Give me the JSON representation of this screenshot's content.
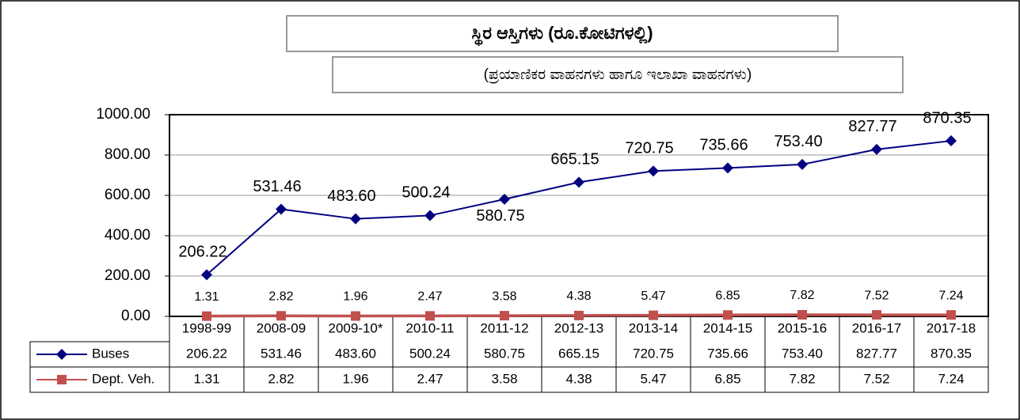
{
  "chart_data": {
    "type": "line",
    "title": "ಸ್ಥಿರ ಆಸ್ತಿಗಳು (ರೂ.ಕೋಟಿಗಳಲ್ಲಿ)",
    "subtitle": "(ಪ್ರಯಾಣಿಕರ ವಾಹನಗಳು  ಹಾಗೂ  ಇಲಾಖಾ ವಾಹನಗಳು)",
    "categories": [
      "1998-99",
      "2008-09",
      "2009-10*",
      "2010-11",
      "2011-12",
      "2012-13",
      "2013-14",
      "2014-15",
      "2015-16",
      "2016-17",
      "2017-18"
    ],
    "series": [
      {
        "name": "Buses",
        "color": "#000080",
        "marker": "diamond",
        "values": [
          206.22,
          531.46,
          483.6,
          500.24,
          580.75,
          665.15,
          720.75,
          735.66,
          753.4,
          827.77,
          870.35
        ],
        "value_labels": [
          "206.22",
          "531.46",
          "483.60",
          "500.24",
          "580.75",
          "665.15",
          "720.75",
          "735.66",
          "753.40",
          "827.77",
          "870.35"
        ]
      },
      {
        "name": "Dept. Veh.",
        "color": "#c0504d",
        "marker": "square",
        "values": [
          1.31,
          2.82,
          1.96,
          2.47,
          3.58,
          4.38,
          5.47,
          6.85,
          7.82,
          7.52,
          7.24
        ],
        "value_labels": [
          "1.31",
          "2.82",
          "1.96",
          "2.47",
          "3.58",
          "4.38",
          "5.47",
          "6.85",
          "7.82",
          "7.52",
          "7.24"
        ]
      }
    ],
    "ylim": [
      0,
      1000
    ],
    "yticks": [
      {
        "value": 0,
        "label": "0.00"
      },
      {
        "value": 200,
        "label": "200.00"
      },
      {
        "value": 400,
        "label": "400.00"
      },
      {
        "value": 600,
        "label": "600.00"
      },
      {
        "value": 800,
        "label": "800.00"
      },
      {
        "value": 1000,
        "label": "1000.00"
      }
    ],
    "grid": true
  }
}
